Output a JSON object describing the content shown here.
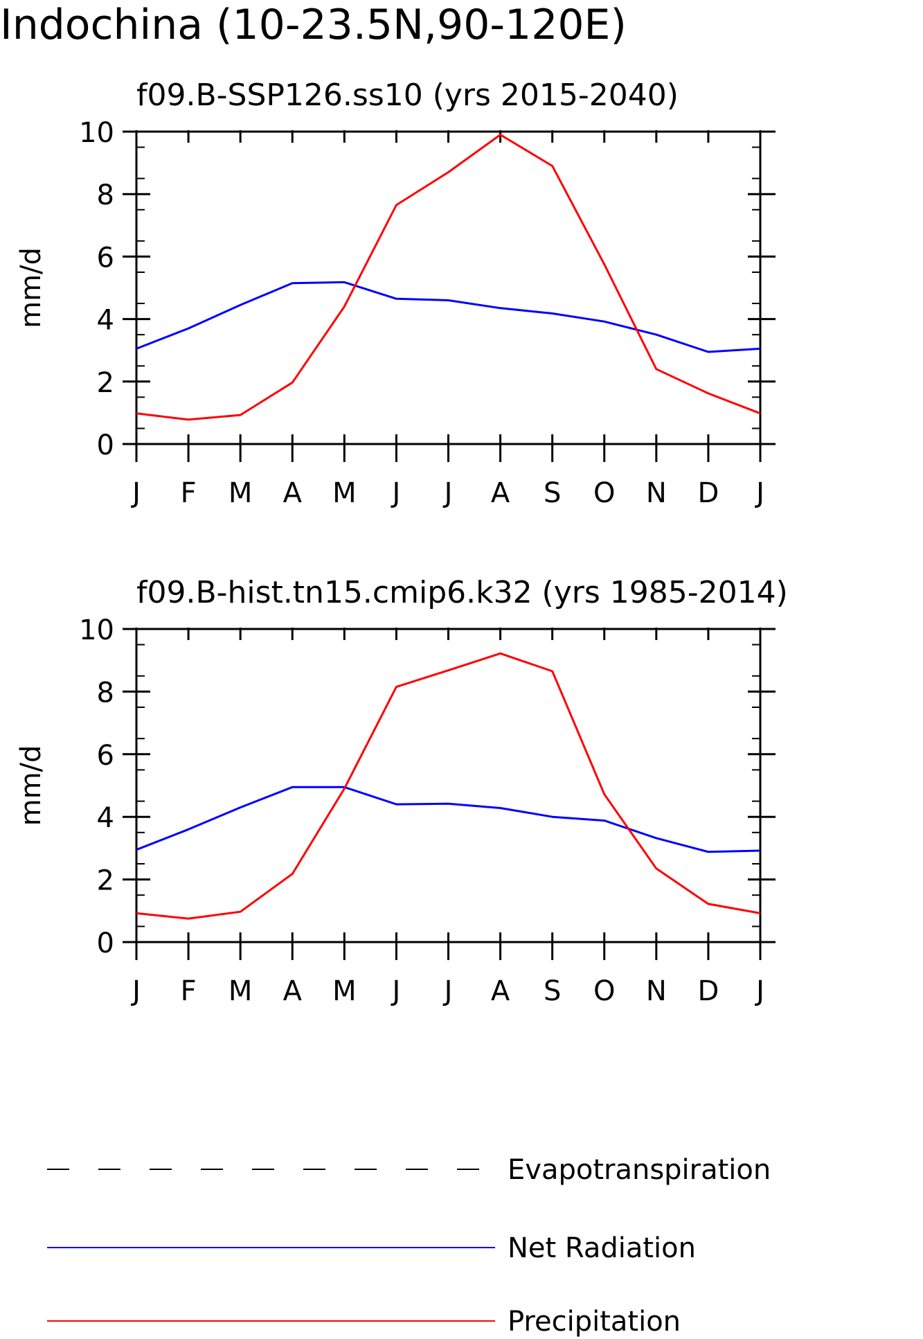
{
  "page_title": "Indochina (10-23.5N,90-120E)",
  "colors": {
    "evapotranspiration": "#000000",
    "net_radiation": "#0000ff",
    "precipitation": "#ff0000",
    "axes": "#000000"
  },
  "legend": {
    "entries": [
      {
        "label": "Evapotranspiration",
        "style": "dashed",
        "color": "#000000"
      },
      {
        "label": "Net Radiation",
        "style": "solid",
        "color": "#0000ff"
      },
      {
        "label": "Precipitation",
        "style": "solid",
        "color": "#ff0000"
      }
    ]
  },
  "chart_data": [
    {
      "type": "line",
      "title": "f09.B-SSP126.ss10 (yrs 2015-2040)",
      "xlabel": "",
      "ylabel": "mm/d",
      "ylim": [
        0,
        10
      ],
      "yticks": [
        0,
        2,
        4,
        6,
        8,
        10
      ],
      "categories": [
        "J",
        "F",
        "M",
        "A",
        "M",
        "J",
        "J",
        "A",
        "S",
        "O",
        "N",
        "D",
        "J"
      ],
      "series": [
        {
          "name": "Net Radiation",
          "color": "#0000ff",
          "values": [
            3.05,
            3.7,
            4.45,
            5.15,
            5.18,
            4.65,
            4.6,
            4.35,
            4.18,
            3.92,
            3.5,
            2.95,
            3.05
          ]
        },
        {
          "name": "Precipitation",
          "color": "#ff0000",
          "values": [
            0.98,
            0.78,
            0.93,
            1.97,
            4.4,
            7.65,
            8.7,
            9.9,
            8.9,
            5.75,
            2.4,
            1.62,
            0.98
          ]
        }
      ]
    },
    {
      "type": "line",
      "title": "f09.B-hist.tn15.cmip6.k32 (yrs 1985-2014)",
      "xlabel": "",
      "ylabel": "mm/d",
      "ylim": [
        0,
        10
      ],
      "yticks": [
        0,
        2,
        4,
        6,
        8,
        10
      ],
      "categories": [
        "J",
        "F",
        "M",
        "A",
        "M",
        "J",
        "J",
        "A",
        "S",
        "O",
        "N",
        "D",
        "J"
      ],
      "series": [
        {
          "name": "Net Radiation",
          "color": "#0000ff",
          "values": [
            2.95,
            3.6,
            4.3,
            4.95,
            4.95,
            4.4,
            4.42,
            4.28,
            4.0,
            3.88,
            3.32,
            2.88,
            2.92
          ]
        },
        {
          "name": "Precipitation",
          "color": "#ff0000",
          "values": [
            0.92,
            0.75,
            0.97,
            2.18,
            4.9,
            8.15,
            8.68,
            9.22,
            8.65,
            4.72,
            2.35,
            1.22,
            0.92
          ]
        }
      ]
    }
  ]
}
